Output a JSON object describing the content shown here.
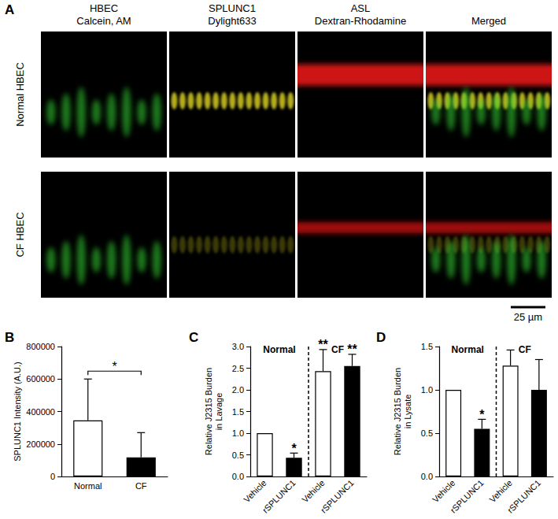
{
  "panel_a": {
    "label": "A",
    "columns": [
      [
        "HBEC",
        "Calcein, AM"
      ],
      [
        "SPLUNC1",
        "Dylight633"
      ],
      [
        "ASL",
        "Dextran-Rhodamine"
      ],
      [
        "Merged"
      ]
    ],
    "rows": [
      "Normal HBEC",
      "CF HBEC"
    ],
    "scale_bar": "25 µm"
  },
  "chart_data": [
    {
      "panel_label": "B",
      "type": "bar",
      "categories": [
        "Normal",
        "CF"
      ],
      "values": [
        345000,
        118000
      ],
      "errors": [
        255000,
        152000
      ],
      "colors": [
        "#ffffff",
        "#000000"
      ],
      "ylabel": "SPLUNC1 Intensity (A.U.)",
      "ylim": [
        0,
        800000
      ],
      "yticks": [
        0,
        200000,
        400000,
        600000,
        800000
      ],
      "grid": false,
      "annotations": [
        {
          "text": "*",
          "indices": [
            0,
            1
          ]
        }
      ]
    },
    {
      "panel_label": "C",
      "type": "bar",
      "categories": [
        "Vehicle",
        "rSPLUNC1",
        "Vehicle",
        "rSPLUNC1"
      ],
      "groups": [
        {
          "label": "Normal",
          "size": 2
        },
        {
          "label": "CF",
          "size": 2
        }
      ],
      "values": [
        1.0,
        0.43,
        2.43,
        2.55
      ],
      "errors": [
        0,
        0.11,
        0.5,
        0.27
      ],
      "colors": [
        "#ffffff",
        "#000000",
        "#ffffff",
        "#000000"
      ],
      "ylabel": "Relative J2315 Burden\nin Lavage",
      "ylim": [
        0,
        3
      ],
      "yticks": [
        {
          "value": 0,
          "label": "0.0"
        },
        0.5,
        {
          "value": 1,
          "label": "1.0"
        },
        1.5,
        {
          "value": 2,
          "label": "2.0"
        },
        2.5,
        {
          "value": 3,
          "label": "3.0"
        }
      ],
      "grid": false,
      "annotations": [
        {
          "text": "*",
          "indices": [
            1
          ]
        },
        {
          "text": "**",
          "indices": [
            2
          ]
        },
        {
          "text": "**",
          "indices": [
            3
          ]
        }
      ]
    },
    {
      "panel_label": "D",
      "type": "bar",
      "categories": [
        "Vehicle",
        "rSPLUNC1",
        "Vehicle",
        "rSPLUNC1"
      ],
      "groups": [
        {
          "label": "Normal",
          "size": 2
        },
        {
          "label": "CF",
          "size": 2
        }
      ],
      "values": [
        1.0,
        0.55,
        1.28,
        1.0
      ],
      "errors": [
        0,
        0.11,
        0.18,
        0.35
      ],
      "colors": [
        "#ffffff",
        "#000000",
        "#ffffff",
        "#000000"
      ],
      "ylabel": "Relative J2315 Burden\nin Lysate",
      "ylim": [
        0,
        1.5
      ],
      "yticks": [
        {
          "value": 0,
          "label": "0.0"
        },
        0.5,
        {
          "value": 1,
          "label": "1.0"
        },
        1.5
      ],
      "grid": false,
      "annotations": [
        {
          "text": "*",
          "indices": [
            1
          ]
        }
      ]
    }
  ]
}
